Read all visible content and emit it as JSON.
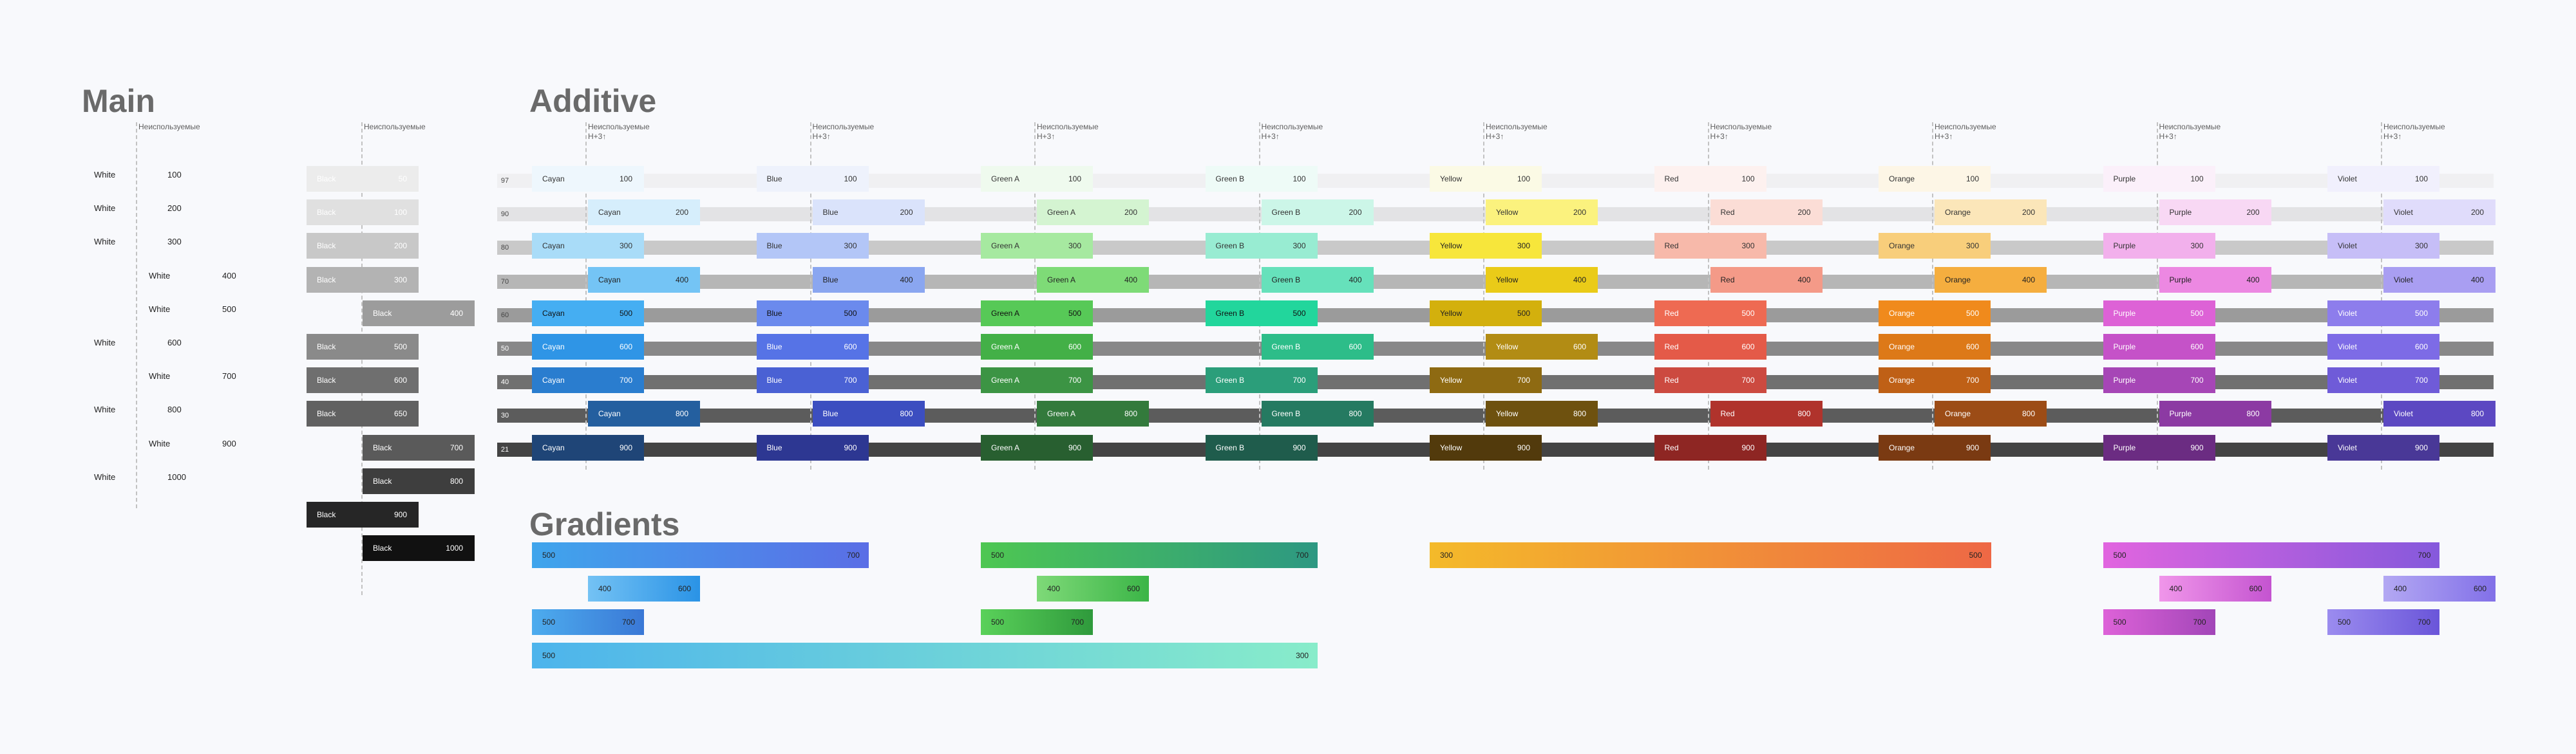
{
  "titles": {
    "main": "Main",
    "additive": "Additive",
    "gradients": "Gradients"
  },
  "notes": {
    "unused": "Неиспользуемые",
    "unused_h": "Неиспользуемые\nH+3↑"
  },
  "main": {
    "white_rows": [
      {
        "name": "White",
        "value": "100",
        "col": 0
      },
      {
        "name": "White",
        "value": "200",
        "col": 0
      },
      {
        "name": "White",
        "value": "300",
        "col": 0
      },
      {
        "name": "White",
        "value": "400",
        "col": 1
      },
      {
        "name": "White",
        "value": "500",
        "col": 1
      },
      {
        "name": "White",
        "value": "600",
        "col": 0
      },
      {
        "name": "White",
        "value": "700",
        "col": 1
      },
      {
        "name": "White",
        "value": "800",
        "col": 0
      },
      {
        "name": "White",
        "value": "900",
        "col": 1
      },
      {
        "name": "White",
        "value": "1000",
        "col": 0
      }
    ],
    "black_rows": [
      {
        "name": "Black",
        "value": "50",
        "col": 0,
        "color": "#ececec",
        "text": "#ffffff"
      },
      {
        "name": "Black",
        "value": "100",
        "col": 0,
        "color": "#e0e0e0",
        "text": "#ffffff"
      },
      {
        "name": "Black",
        "value": "200",
        "col": 0,
        "color": "#c8c8c8",
        "text": "#ffffff"
      },
      {
        "name": "Black",
        "value": "300",
        "col": 0,
        "color": "#b3b3b3",
        "text": "#ffffff"
      },
      {
        "name": "Black",
        "value": "400",
        "col": 1,
        "color": "#9c9c9c",
        "text": "#ffffff"
      },
      {
        "name": "Black",
        "value": "500",
        "col": 0,
        "color": "#8a8a8a",
        "text": "#ffffff"
      },
      {
        "name": "Black",
        "value": "600",
        "col": 0,
        "color": "#6f6f6f",
        "text": "#ffffff"
      },
      {
        "name": "Black",
        "value": "650",
        "col": 0,
        "color": "#616161",
        "text": "#ffffff"
      },
      {
        "name": "Black",
        "value": "700",
        "col": 1,
        "color": "#5a5a5a",
        "text": "#ffffff"
      },
      {
        "name": "Black",
        "value": "800",
        "col": 1,
        "color": "#3e3e3e",
        "text": "#ffffff"
      },
      {
        "name": "Black",
        "value": "900",
        "col": 0,
        "color": "#262626",
        "text": "#ffffff"
      },
      {
        "name": "Black",
        "value": "1000",
        "col": 1,
        "color": "#111111",
        "text": "#ffffff"
      }
    ]
  },
  "additive": {
    "opacity_rows": [
      {
        "label": "97",
        "band": "#f0f0f2"
      },
      {
        "label": "90",
        "band": "#e3e3e5"
      },
      {
        "label": "80",
        "band": "#c9c9c9"
      },
      {
        "label": "70",
        "band": "#b6b6b6"
      },
      {
        "label": "60",
        "band": "#9b9b9b"
      },
      {
        "label": "50",
        "band": "#888888"
      },
      {
        "label": "40",
        "band": "#707070"
      },
      {
        "label": "30",
        "band": "#5c5c5c"
      },
      {
        "label": "21",
        "band": "#444444"
      }
    ],
    "shades": [
      "100",
      "200",
      "300",
      "400",
      "500",
      "600",
      "700",
      "800",
      "900"
    ],
    "columns": [
      {
        "name": "Cayan",
        "cols": [
          0,
          1,
          0,
          1,
          0,
          0,
          0,
          1,
          0
        ],
        "colors": [
          "#eef7fd",
          "#d6eefc",
          "#a9dcf8",
          "#74c4f5",
          "#45aef2",
          "#2f95e6",
          "#2a7dcf",
          "#245f9f",
          "#1f4577"
        ],
        "text": [
          "#333",
          "#333",
          "#333",
          "#222",
          "#111",
          "#fff",
          "#fff",
          "#fff",
          "#fff"
        ]
      },
      {
        "name": "Blue",
        "cols": [
          0,
          1,
          0,
          1,
          0,
          0,
          0,
          1,
          0
        ],
        "colors": [
          "#eef2fc",
          "#dae3fb",
          "#b3c6f7",
          "#8aa6f0",
          "#6b8aed",
          "#5673e6",
          "#4a61d4",
          "#3c4ec0",
          "#2d3792"
        ],
        "text": [
          "#333",
          "#333",
          "#333",
          "#222",
          "#111",
          "#fff",
          "#fff",
          "#fff",
          "#fff"
        ]
      },
      {
        "name": "Green A",
        "cols": [
          0,
          1,
          0,
          1,
          0,
          0,
          0,
          1,
          0
        ],
        "colors": [
          "#effaee",
          "#d4f4d1",
          "#a6e9a0",
          "#7edb77",
          "#57c957",
          "#43b047",
          "#3c9444",
          "#337a3c",
          "#285f30"
        ],
        "text": [
          "#333",
          "#333",
          "#333",
          "#222",
          "#111",
          "#fff",
          "#fff",
          "#fff",
          "#fff"
        ]
      },
      {
        "name": "Green B",
        "cols": [
          0,
          1,
          0,
          1,
          0,
          1,
          0,
          1,
          0
        ],
        "colors": [
          "#eefbf7",
          "#ccf6e8",
          "#98ecd2",
          "#66e1bb",
          "#22d69c",
          "#2dbd89",
          "#2b9e7a",
          "#257a61",
          "#1f5c4c"
        ],
        "text": [
          "#333",
          "#333",
          "#333",
          "#222",
          "#111",
          "#fff",
          "#fff",
          "#fff",
          "#fff"
        ]
      },
      {
        "name": "Yellow",
        "cols": [
          0,
          1,
          0,
          1,
          0,
          1,
          0,
          1,
          0
        ],
        "colors": [
          "#fbfae5",
          "#fbf27e",
          "#f7e63b",
          "#eacb18",
          "#d3b00d",
          "#b28c14",
          "#8e6a12",
          "#6e510f",
          "#523a0c"
        ],
        "text": [
          "#333",
          "#333",
          "#222",
          "#222",
          "#222",
          "#fff",
          "#fff",
          "#fff",
          "#fff"
        ]
      },
      {
        "name": "Red",
        "cols": [
          0,
          1,
          0,
          1,
          0,
          0,
          0,
          1,
          0
        ],
        "colors": [
          "#fdf1ef",
          "#fbddd6",
          "#f7b9aa",
          "#f49a88",
          "#ee6a52",
          "#e45a48",
          "#cc4a40",
          "#b0332c",
          "#8e2623"
        ],
        "text": [
          "#333",
          "#333",
          "#333",
          "#222",
          "#fff",
          "#fff",
          "#fff",
          "#fff",
          "#fff"
        ]
      },
      {
        "name": "Orange",
        "cols": [
          0,
          1,
          0,
          1,
          0,
          0,
          0,
          1,
          0
        ],
        "colors": [
          "#fdf6e6",
          "#fbe6b9",
          "#f8ce7b",
          "#f5ae3f",
          "#f08a1c",
          "#dd7918",
          "#bf6016",
          "#9c4c16",
          "#7a3a12"
        ],
        "text": [
          "#333",
          "#333",
          "#333",
          "#222",
          "#fff",
          "#fff",
          "#fff",
          "#fff",
          "#fff"
        ]
      },
      {
        "name": "Purple",
        "cols": [
          0,
          1,
          0,
          1,
          0,
          0,
          0,
          1,
          0
        ],
        "colors": [
          "#fbf0fa",
          "#f8d8f4",
          "#f2b0ec",
          "#ec88e2",
          "#dd62d6",
          "#c552c8",
          "#a646b6",
          "#8c3aa3",
          "#6b2c82"
        ],
        "text": [
          "#333",
          "#333",
          "#333",
          "#222",
          "#fff",
          "#fff",
          "#fff",
          "#fff",
          "#fff"
        ]
      },
      {
        "name": "Violet",
        "cols": [
          0,
          1,
          0,
          1,
          0,
          0,
          0,
          1,
          0
        ],
        "colors": [
          "#f1f0fd",
          "#e0dcfb",
          "#c6bef7",
          "#a99ef2",
          "#8d7dec",
          "#7d6be6",
          "#6f5bd8",
          "#5c48c2",
          "#493897"
        ],
        "text": [
          "#333",
          "#333",
          "#333",
          "#222",
          "#fff",
          "#fff",
          "#fff",
          "#fff",
          "#fff"
        ]
      }
    ]
  },
  "gradients": [
    {
      "left": "500",
      "right": "700",
      "from": "#3fa5ec",
      "to": "#5a6ee6",
      "col": 0,
      "row": 0,
      "span": 3
    },
    {
      "left": "400",
      "right": "600",
      "from": "#74c2f4",
      "to": "#2a93e6",
      "col": 0,
      "row": 1,
      "span": 2,
      "offset": 1
    },
    {
      "left": "500",
      "right": "700",
      "from": "#4dacee",
      "to": "#3a78d6",
      "col": 0,
      "row": 2,
      "span": 1
    },
    {
      "left": "500",
      "right": "300",
      "from": "#4db4ec",
      "to": "#88ecca",
      "col": 0,
      "row": 3,
      "span": 7
    },
    {
      "left": "500",
      "right": "700",
      "from": "#4ec752",
      "to": "#2d9882",
      "col": 2,
      "row": 0,
      "span": 3
    },
    {
      "left": "400",
      "right": "600",
      "from": "#7ed978",
      "to": "#3bb547",
      "col": 2,
      "row": 1,
      "span": 1,
      "offset": 1
    },
    {
      "left": "500",
      "right": "700",
      "from": "#5ad15a",
      "to": "#2f9a3c",
      "col": 2,
      "row": 2,
      "span": 1
    },
    {
      "left": "300",
      "right": "500",
      "from": "#f4ba2a",
      "to": "#ee6845",
      "col": 4,
      "row": 0,
      "span": 5
    },
    {
      "left": "500",
      "right": "700",
      "from": "#e165df",
      "to": "#8559dc",
      "col": 7,
      "row": 0,
      "span": 3
    },
    {
      "left": "400",
      "right": "600",
      "from": "#f096ea",
      "to": "#c454d0",
      "col": 7,
      "row": 1,
      "span": 1,
      "offset": 1
    },
    {
      "left": "400",
      "right": "600",
      "from": "#b3a8f3",
      "to": "#8270e8",
      "col": 8,
      "row": 1,
      "span": 1,
      "offset": 1
    },
    {
      "left": "500",
      "right": "700",
      "from": "#dd62d8",
      "to": "#a246b8",
      "col": 7,
      "row": 2,
      "span": 1
    },
    {
      "left": "500",
      "right": "700",
      "from": "#9b8cef",
      "to": "#6a55d9",
      "col": 8,
      "row": 2,
      "span": 1
    }
  ]
}
